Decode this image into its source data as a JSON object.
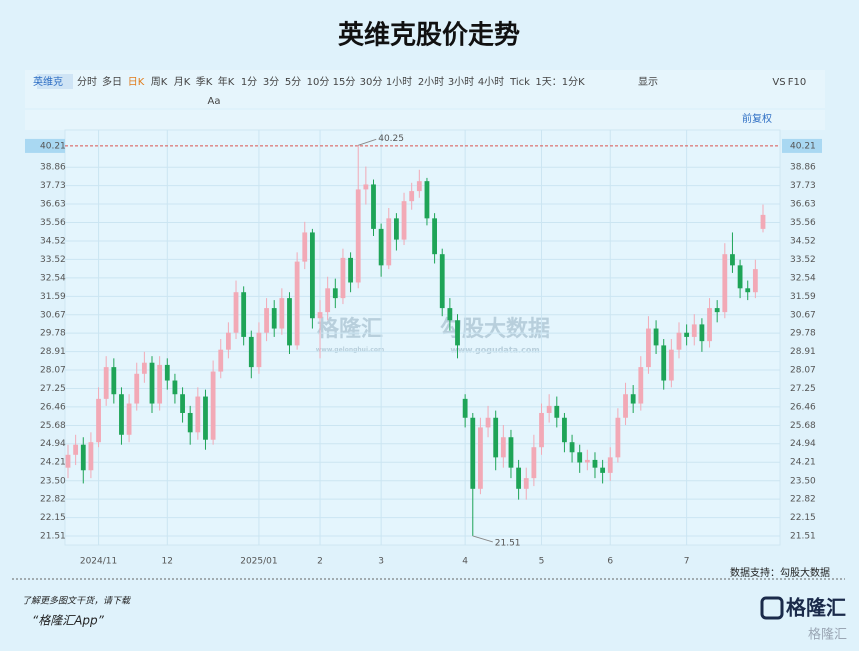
{
  "chart_data": {
    "type": "candlestick",
    "title": "英维克股价走势",
    "toolbar": [
      "英维克",
      "分时",
      "多日",
      "日K",
      "周K",
      "月K",
      "季K",
      "年K",
      "1分",
      "3分",
      "5分",
      "10分",
      "15分",
      "30分",
      "1小时",
      "2小时",
      "3小时",
      "4小时",
      "Tick",
      "1天：1分K",
      "显示",
      "VS",
      "F10"
    ],
    "toolbar2": [
      "Aa"
    ],
    "adjust_label": "前复权",
    "watermark": [
      "格隆汇",
      "www.gelonghui.com",
      "勾股大数据",
      "www.gogudata.com"
    ],
    "source": "数据支持：勾股大数据",
    "categories": [
      null,
      null,
      null,
      null,
      "2024/11",
      null,
      null,
      null,
      null,
      null,
      null,
      null,
      null,
      "12",
      null,
      null,
      null,
      null,
      null,
      null,
      null,
      null,
      null,
      null,
      null,
      "2025/01",
      null,
      null,
      null,
      null,
      null,
      null,
      null,
      "2",
      null,
      null,
      null,
      null,
      null,
      null,
      null,
      "3",
      null,
      null,
      null,
      null,
      null,
      null,
      null,
      null,
      null,
      null,
      "4",
      null,
      null,
      null,
      null,
      null,
      null,
      null,
      null,
      null,
      "5",
      null,
      null,
      null,
      null,
      null,
      null,
      null,
      null,
      "6",
      null,
      null,
      null,
      null,
      null,
      null,
      null,
      null,
      null,
      "7",
      null,
      null,
      null,
      null,
      null,
      null,
      null,
      null,
      null,
      null
    ],
    "open": [
      24.0,
      24.5,
      24.9,
      23.9,
      25.0,
      26.8,
      28.2,
      27.0,
      25.3,
      26.6,
      27.9,
      28.4,
      26.6,
      28.3,
      27.6,
      27.0,
      26.2,
      25.4,
      26.9,
      25.1,
      28.0,
      29.0,
      29.8,
      31.8,
      29.6,
      28.2,
      29.8,
      31.0,
      30.0,
      31.5,
      29.2,
      33.4,
      35.0,
      30.5,
      30.8,
      32.0,
      31.5,
      33.6,
      32.3,
      37.5,
      37.8,
      35.2,
      33.2,
      35.8,
      34.6,
      36.8,
      37.4,
      38.0,
      35.8,
      33.8,
      31.0,
      30.4,
      26.8,
      26.0,
      23.2,
      25.6,
      26.0,
      24.4,
      25.2,
      24.0,
      23.2,
      23.6,
      24.8,
      26.2,
      26.5,
      26.0,
      25.0,
      24.6,
      24.2,
      24.3,
      24.0,
      23.8,
      24.4,
      26.0,
      27.0,
      26.6,
      28.2,
      30.0,
      29.2,
      27.6,
      29.0,
      29.8,
      29.6,
      30.2,
      29.4,
      31.0,
      30.8,
      33.8,
      33.2,
      32.0,
      31.8,
      35.2
    ],
    "high": [
      24.9,
      25.3,
      25.2,
      25.4,
      27.3,
      28.7,
      28.6,
      27.3,
      27.0,
      28.4,
      28.9,
      28.7,
      28.7,
      28.6,
      27.9,
      27.3,
      26.5,
      27.3,
      27.2,
      28.5,
      29.5,
      30.3,
      32.4,
      32.1,
      29.9,
      30.3,
      31.5,
      31.4,
      32.0,
      31.8,
      33.9,
      35.6,
      35.2,
      31.4,
      32.6,
      32.5,
      34.1,
      33.9,
      40.25,
      38.9,
      38.1,
      35.5,
      36.4,
      36.1,
      37.3,
      37.9,
      38.7,
      38.2,
      36.1,
      34.1,
      31.5,
      30.7,
      27.0,
      26.2,
      26.0,
      26.5,
      26.3,
      25.7,
      25.5,
      24.3,
      24.0,
      25.3,
      26.6,
      27.0,
      26.9,
      26.2,
      25.3,
      24.9,
      24.7,
      24.6,
      24.3,
      24.8,
      26.4,
      27.5,
      27.4,
      28.7,
      30.6,
      30.4,
      29.5,
      29.5,
      30.3,
      30.2,
      30.7,
      30.5,
      31.5,
      31.4,
      34.4,
      35.0,
      33.5,
      32.4,
      33.5,
      36.6
    ],
    "low": [
      23.6,
      24.1,
      23.4,
      23.6,
      24.8,
      26.5,
      26.6,
      24.9,
      25.0,
      26.3,
      27.5,
      26.2,
      26.3,
      27.2,
      26.6,
      25.8,
      24.9,
      25.1,
      24.7,
      24.9,
      27.7,
      28.6,
      29.5,
      29.2,
      27.7,
      27.9,
      29.4,
      29.6,
      29.7,
      28.8,
      29.0,
      33.0,
      30.0,
      28.6,
      30.4,
      31.0,
      31.2,
      31.8,
      32.0,
      36.6,
      34.8,
      32.6,
      33.0,
      34.0,
      34.3,
      36.3,
      37.0,
      35.4,
      33.3,
      30.6,
      29.9,
      28.6,
      25.6,
      21.51,
      23.0,
      25.2,
      23.9,
      24.0,
      23.6,
      22.8,
      22.8,
      23.3,
      24.5,
      25.8,
      25.6,
      24.6,
      24.2,
      23.8,
      23.9,
      23.6,
      23.4,
      23.5,
      24.2,
      25.7,
      26.2,
      26.3,
      27.9,
      28.8,
      27.2,
      27.3,
      28.6,
      29.2,
      29.2,
      28.9,
      29.1,
      30.3,
      30.5,
      32.8,
      31.5,
      31.4,
      31.5,
      35.0
    ],
    "close": [
      24.5,
      24.9,
      23.9,
      25.0,
      26.8,
      28.2,
      27.0,
      25.3,
      26.6,
      27.9,
      28.4,
      26.6,
      28.3,
      27.6,
      27.0,
      26.2,
      25.4,
      26.9,
      25.1,
      28.0,
      29.0,
      29.8,
      31.8,
      29.6,
      28.2,
      29.8,
      31.0,
      30.0,
      31.5,
      29.2,
      33.4,
      35.0,
      30.5,
      30.8,
      32.0,
      31.5,
      33.6,
      32.3,
      37.5,
      37.8,
      35.2,
      33.2,
      35.8,
      34.6,
      36.8,
      37.4,
      38.0,
      35.8,
      33.8,
      31.0,
      30.4,
      29.2,
      26.0,
      23.2,
      25.6,
      26.0,
      24.4,
      25.2,
      24.0,
      23.2,
      23.6,
      24.8,
      26.2,
      26.5,
      26.0,
      25.0,
      24.6,
      24.2,
      24.3,
      24.0,
      23.8,
      24.4,
      26.0,
      27.0,
      26.6,
      28.2,
      30.0,
      29.2,
      27.6,
      29.0,
      29.8,
      29.6,
      30.2,
      29.4,
      31.0,
      30.8,
      33.8,
      33.2,
      32.0,
      31.8,
      33.0,
      36.0
    ],
    "up_color": "#f2a9b6",
    "down_color": "#1ea457",
    "max_index": 38,
    "min_index": 53,
    "log_scale": true,
    "grid": true,
    "ylim": [
      21.2,
      41.25
    ],
    "yticks": [
      21.51,
      22.15,
      22.82,
      {
        "value": 23.5,
        "label": "23.50"
      },
      24.21,
      24.94,
      25.68,
      26.46,
      27.25,
      28.07,
      28.91,
      29.78,
      30.67,
      31.59,
      32.54,
      33.52,
      34.52,
      35.56,
      36.63,
      37.73,
      38.86
    ],
    "crosshair_value": 40.21
  },
  "footer": {
    "line1": "了解更多图文干货，请下载",
    "line2": "“格隆汇App”",
    "logo": "格隆汇",
    "logo2": "格隆汇"
  }
}
